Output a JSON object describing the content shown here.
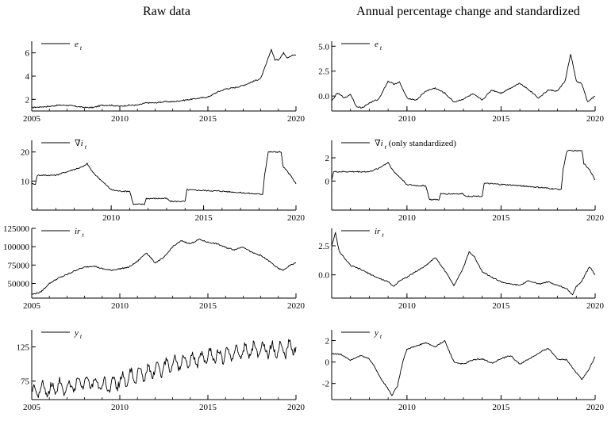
{
  "titles": {
    "left": "Raw data",
    "right": "Annual percentage change and standardized"
  },
  "chart_data": [
    {
      "type": "line",
      "panel": "raw-e",
      "legend": "e",
      "legend_sub": "t",
      "legend_suffix": "",
      "xlim": [
        2005,
        2020
      ],
      "xticks": [
        2005,
        2010,
        2015,
        2020
      ],
      "ylim": [
        1,
        7
      ],
      "yticks": [
        2,
        4,
        6
      ],
      "ytick_labels": [
        "2",
        "4",
        "6"
      ],
      "points": [
        [
          2005,
          1.3
        ],
        [
          2006,
          1.4
        ],
        [
          2006.5,
          1.5
        ],
        [
          2007,
          1.5
        ],
        [
          2007.5,
          1.4
        ],
        [
          2008,
          1.3
        ],
        [
          2008.5,
          1.3
        ],
        [
          2009,
          1.5
        ],
        [
          2009.5,
          1.5
        ],
        [
          2010,
          1.4
        ],
        [
          2010.5,
          1.5
        ],
        [
          2011,
          1.5
        ],
        [
          2011.5,
          1.7
        ],
        [
          2012,
          1.7
        ],
        [
          2012.5,
          1.8
        ],
        [
          2013,
          1.8
        ],
        [
          2013.5,
          1.9
        ],
        [
          2014,
          2.0
        ],
        [
          2014.5,
          2.1
        ],
        [
          2015,
          2.2
        ],
        [
          2015.5,
          2.6
        ],
        [
          2016,
          2.9
        ],
        [
          2016.5,
          3.0
        ],
        [
          2017,
          3.2
        ],
        [
          2017.5,
          3.5
        ],
        [
          2018,
          3.8
        ],
        [
          2018.3,
          5.0
        ],
        [
          2018.6,
          6.3
        ],
        [
          2018.8,
          5.4
        ],
        [
          2019,
          5.4
        ],
        [
          2019.3,
          6.0
        ],
        [
          2019.5,
          5.6
        ],
        [
          2019.8,
          5.8
        ],
        [
          2020,
          5.8
        ]
      ]
    },
    {
      "type": "line",
      "panel": "raw-nabla-i",
      "legend": "∇i",
      "legend_sub": "t",
      "legend_suffix": "",
      "xlim": [
        2005.7,
        2020
      ],
      "xticks": [
        2010,
        2015,
        2020
      ],
      "ylim": [
        0,
        24
      ],
      "yticks": [
        10,
        20
      ],
      "ytick_labels": [
        "10",
        "20"
      ],
      "points": [
        [
          2005.7,
          9
        ],
        [
          2005.9,
          9
        ],
        [
          2006,
          12
        ],
        [
          2007,
          12
        ],
        [
          2007.5,
          13
        ],
        [
          2008,
          14
        ],
        [
          2008.5,
          15
        ],
        [
          2008.7,
          16
        ],
        [
          2009,
          13
        ],
        [
          2009.5,
          10
        ],
        [
          2010,
          7
        ],
        [
          2010.5,
          6.5
        ],
        [
          2011,
          6.5
        ],
        [
          2011.2,
          2
        ],
        [
          2011.8,
          2
        ],
        [
          2011.9,
          4
        ],
        [
          2013,
          4
        ],
        [
          2013.2,
          3
        ],
        [
          2014,
          3
        ],
        [
          2014.1,
          7
        ],
        [
          2016,
          6.5
        ],
        [
          2018,
          5.5
        ],
        [
          2018.2,
          5.5
        ],
        [
          2018.3,
          12
        ],
        [
          2018.5,
          20
        ],
        [
          2019.2,
          20
        ],
        [
          2019.3,
          15
        ],
        [
          2019.7,
          12
        ],
        [
          2020,
          9
        ]
      ]
    },
    {
      "type": "line",
      "panel": "raw-ir",
      "legend": "ir",
      "legend_sub": "t",
      "legend_suffix": "",
      "xlim": [
        2005,
        2020
      ],
      "xticks": [
        2005,
        2010,
        2015,
        2020
      ],
      "ylim": [
        30000,
        125000
      ],
      "yticks": [
        50000,
        75000,
        100000,
        125000
      ],
      "ytick_labels": [
        "50000",
        "75000",
        "100000",
        "125000"
      ],
      "points": [
        [
          2005,
          35000
        ],
        [
          2005.5,
          38000
        ],
        [
          2006,
          50000
        ],
        [
          2006.5,
          57000
        ],
        [
          2007,
          62000
        ],
        [
          2007.5,
          68000
        ],
        [
          2008,
          72000
        ],
        [
          2008.5,
          74000
        ],
        [
          2009,
          70000
        ],
        [
          2009.5,
          68000
        ],
        [
          2010,
          70000
        ],
        [
          2010.5,
          72000
        ],
        [
          2011,
          80000
        ],
        [
          2011.5,
          92000
        ],
        [
          2012,
          78000
        ],
        [
          2012.5,
          85000
        ],
        [
          2013,
          100000
        ],
        [
          2013.5,
          108000
        ],
        [
          2014,
          104000
        ],
        [
          2014.5,
          110000
        ],
        [
          2015,
          106000
        ],
        [
          2015.5,
          104000
        ],
        [
          2016,
          99000
        ],
        [
          2016.5,
          96000
        ],
        [
          2017,
          100000
        ],
        [
          2017.5,
          92000
        ],
        [
          2018,
          88000
        ],
        [
          2018.5,
          80000
        ],
        [
          2019,
          70000
        ],
        [
          2019.3,
          68000
        ],
        [
          2019.6,
          74000
        ],
        [
          2020,
          78000
        ]
      ]
    },
    {
      "type": "line",
      "panel": "raw-y",
      "legend": "y",
      "legend_sub": "t",
      "legend_suffix": "",
      "xlim": [
        2005,
        2020
      ],
      "xticks": [
        2005,
        2010,
        2015,
        2020
      ],
      "ylim": [
        48,
        150
      ],
      "yticks": [
        75,
        125
      ],
      "ytick_labels": [
        "75",
        "125"
      ],
      "points": [
        [
          2005,
          58
        ],
        [
          2005.5,
          62
        ],
        [
          2006,
          60
        ],
        [
          2006.5,
          68
        ],
        [
          2007,
          65
        ],
        [
          2007.5,
          70
        ],
        [
          2008,
          72
        ],
        [
          2008.5,
          75
        ],
        [
          2009,
          66
        ],
        [
          2009.5,
          70
        ],
        [
          2010,
          75
        ],
        [
          2010.5,
          80
        ],
        [
          2011,
          85
        ],
        [
          2011.5,
          88
        ],
        [
          2012,
          92
        ],
        [
          2012.5,
          96
        ],
        [
          2013,
          100
        ],
        [
          2013.5,
          102
        ],
        [
          2014,
          106
        ],
        [
          2014.5,
          108
        ],
        [
          2015,
          110
        ],
        [
          2015.5,
          112
        ],
        [
          2016,
          115
        ],
        [
          2016.5,
          116
        ],
        [
          2017,
          118
        ],
        [
          2017.5,
          120
        ],
        [
          2018,
          122
        ],
        [
          2018.5,
          121
        ],
        [
          2019,
          120
        ],
        [
          2019.5,
          122
        ],
        [
          2020,
          125
        ]
      ],
      "seasonal_amplitude": 9
    },
    {
      "type": "line",
      "panel": "std-e",
      "legend": "e",
      "legend_sub": "t",
      "legend_suffix": "",
      "xlim": [
        2006,
        2020
      ],
      "xticks": [
        2010,
        2015,
        2020
      ],
      "ylim": [
        -1.5,
        5.5
      ],
      "yticks": [
        0,
        2.5,
        5
      ],
      "ytick_labels": [
        "0.0",
        "2.5",
        "5.0"
      ],
      "points": [
        [
          2006,
          -0.5
        ],
        [
          2006.3,
          0.3
        ],
        [
          2006.7,
          -0.2
        ],
        [
          2007,
          0.2
        ],
        [
          2007.3,
          -1
        ],
        [
          2007.6,
          -1.2
        ],
        [
          2008,
          -0.7
        ],
        [
          2008.5,
          -0.3
        ],
        [
          2009,
          1.5
        ],
        [
          2009.3,
          1.2
        ],
        [
          2009.6,
          1.4
        ],
        [
          2010,
          -0.2
        ],
        [
          2010.5,
          -0.4
        ],
        [
          2011,
          0.5
        ],
        [
          2011.5,
          0.8
        ],
        [
          2012,
          0.3
        ],
        [
          2012.5,
          -0.6
        ],
        [
          2013,
          -0.3
        ],
        [
          2013.5,
          0.2
        ],
        [
          2014,
          -0.4
        ],
        [
          2014.5,
          0.6
        ],
        [
          2015,
          0.3
        ],
        [
          2015.5,
          0.8
        ],
        [
          2016,
          1.3
        ],
        [
          2016.5,
          0.6
        ],
        [
          2017,
          -0.2
        ],
        [
          2017.5,
          0.6
        ],
        [
          2018,
          0.5
        ],
        [
          2018.4,
          1.5
        ],
        [
          2018.7,
          4.2
        ],
        [
          2019,
          1.5
        ],
        [
          2019.3,
          1.2
        ],
        [
          2019.6,
          -0.6
        ],
        [
          2019.8,
          -0.3
        ],
        [
          2020,
          0
        ]
      ]
    },
    {
      "type": "line",
      "panel": "std-nabla-i",
      "legend": "∇i",
      "legend_sub": "t",
      "legend_suffix": " (only standardized)",
      "xlim": [
        2006,
        2020
      ],
      "xticks": [
        2010,
        2015,
        2020
      ],
      "ylim": [
        -2.5,
        3.5
      ],
      "yticks": [
        0,
        2
      ],
      "ytick_labels": [
        "0",
        "2"
      ],
      "points": [
        [
          2006,
          0.1
        ],
        [
          2006.1,
          0.8
        ],
        [
          2007,
          0.8
        ],
        [
          2008,
          0.8
        ],
        [
          2008.5,
          1.1
        ],
        [
          2009,
          1.6
        ],
        [
          2009.3,
          0.8
        ],
        [
          2009.7,
          0.2
        ],
        [
          2010,
          -0.3
        ],
        [
          2010.5,
          -0.4
        ],
        [
          2011,
          -0.4
        ],
        [
          2011.2,
          -1.6
        ],
        [
          2011.7,
          -1.6
        ],
        [
          2011.8,
          -1.1
        ],
        [
          2013,
          -1.1
        ],
        [
          2013.1,
          -1.3
        ],
        [
          2014,
          -1.3
        ],
        [
          2014.1,
          -0.2
        ],
        [
          2016,
          -0.4
        ],
        [
          2018,
          -0.7
        ],
        [
          2018.2,
          -0.7
        ],
        [
          2018.3,
          1
        ],
        [
          2018.5,
          2.6
        ],
        [
          2019.3,
          2.6
        ],
        [
          2019.4,
          1.5
        ],
        [
          2019.7,
          1
        ],
        [
          2020,
          0.1
        ]
      ]
    },
    {
      "type": "line",
      "panel": "std-ir",
      "legend": "ir",
      "legend_sub": "t",
      "legend_suffix": "",
      "xlim": [
        2006,
        2020
      ],
      "xticks": [
        2010,
        2015,
        2020
      ],
      "ylim": [
        -2,
        4
      ],
      "yticks": [
        0,
        2.5
      ],
      "ytick_labels": [
        "0.0",
        "2.5"
      ],
      "points": [
        [
          2006,
          2.5
        ],
        [
          2006.2,
          3.6
        ],
        [
          2006.4,
          2
        ],
        [
          2006.7,
          1.4
        ],
        [
          2007,
          0.8
        ],
        [
          2007.5,
          0.5
        ],
        [
          2008,
          0.1
        ],
        [
          2008.5,
          -0.3
        ],
        [
          2009,
          -0.6
        ],
        [
          2009.3,
          -1
        ],
        [
          2009.6,
          -0.5
        ],
        [
          2010,
          -0.2
        ],
        [
          2010.5,
          0.3
        ],
        [
          2011,
          0.8
        ],
        [
          2011.5,
          1.5
        ],
        [
          2012,
          0.4
        ],
        [
          2012.5,
          -0.9
        ],
        [
          2013,
          0.6
        ],
        [
          2013.3,
          2
        ],
        [
          2013.6,
          1.5
        ],
        [
          2014,
          0.3
        ],
        [
          2014.5,
          -0.2
        ],
        [
          2015,
          -0.6
        ],
        [
          2015.5,
          -0.8
        ],
        [
          2016,
          -0.9
        ],
        [
          2016.5,
          -0.5
        ],
        [
          2017,
          -0.8
        ],
        [
          2017.5,
          -0.6
        ],
        [
          2018,
          -0.9
        ],
        [
          2018.5,
          -1.2
        ],
        [
          2018.8,
          -1.7
        ],
        [
          2019,
          -1
        ],
        [
          2019.3,
          -0.5
        ],
        [
          2019.7,
          0.7
        ],
        [
          2020,
          0
        ]
      ]
    },
    {
      "type": "line",
      "panel": "std-y",
      "legend": "y",
      "legend_sub": "t",
      "legend_suffix": "",
      "xlim": [
        2006,
        2020
      ],
      "xticks": [
        2010,
        2015,
        2020
      ],
      "ylim": [
        -3.5,
        3
      ],
      "yticks": [
        -2,
        0,
        2
      ],
      "ytick_labels": [
        "-2",
        "0",
        "2"
      ],
      "points": [
        [
          2006,
          0.8
        ],
        [
          2006.5,
          0.7
        ],
        [
          2007,
          0.2
        ],
        [
          2007.5,
          0.6
        ],
        [
          2008,
          0.3
        ],
        [
          2008.3,
          -0.5
        ],
        [
          2008.6,
          -1.5
        ],
        [
          2009,
          -2.5
        ],
        [
          2009.2,
          -3.1
        ],
        [
          2009.5,
          -2.2
        ],
        [
          2009.8,
          0.2
        ],
        [
          2010,
          1.2
        ],
        [
          2010.5,
          1.5
        ],
        [
          2011,
          1.8
        ],
        [
          2011.5,
          1.4
        ],
        [
          2012,
          2
        ],
        [
          2012.5,
          0
        ],
        [
          2013,
          -0.2
        ],
        [
          2013.5,
          0.2
        ],
        [
          2014,
          0.3
        ],
        [
          2014.5,
          -0.1
        ],
        [
          2015,
          0.3
        ],
        [
          2015.5,
          0.6
        ],
        [
          2016,
          -0.2
        ],
        [
          2016.5,
          0.3
        ],
        [
          2017,
          0.8
        ],
        [
          2017.5,
          1.3
        ],
        [
          2018,
          0.3
        ],
        [
          2018.5,
          0.2
        ],
        [
          2019,
          -1
        ],
        [
          2019.3,
          -1.6
        ],
        [
          2019.6,
          -0.9
        ],
        [
          2020,
          0.5
        ]
      ]
    }
  ]
}
